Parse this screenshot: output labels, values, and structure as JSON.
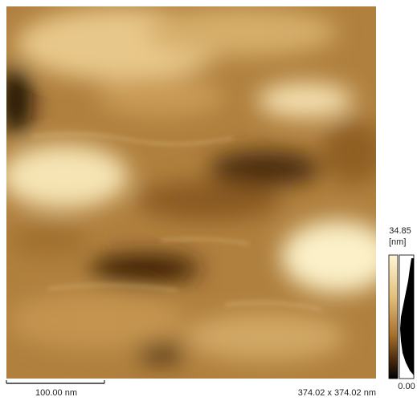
{
  "scale_bar": {
    "label": "100.00 nm"
  },
  "image_size": "374.02 x 374.02 nm",
  "colorbar": {
    "max_label": "34.85",
    "unit": "[nm]",
    "min_label": "0.00"
  }
}
